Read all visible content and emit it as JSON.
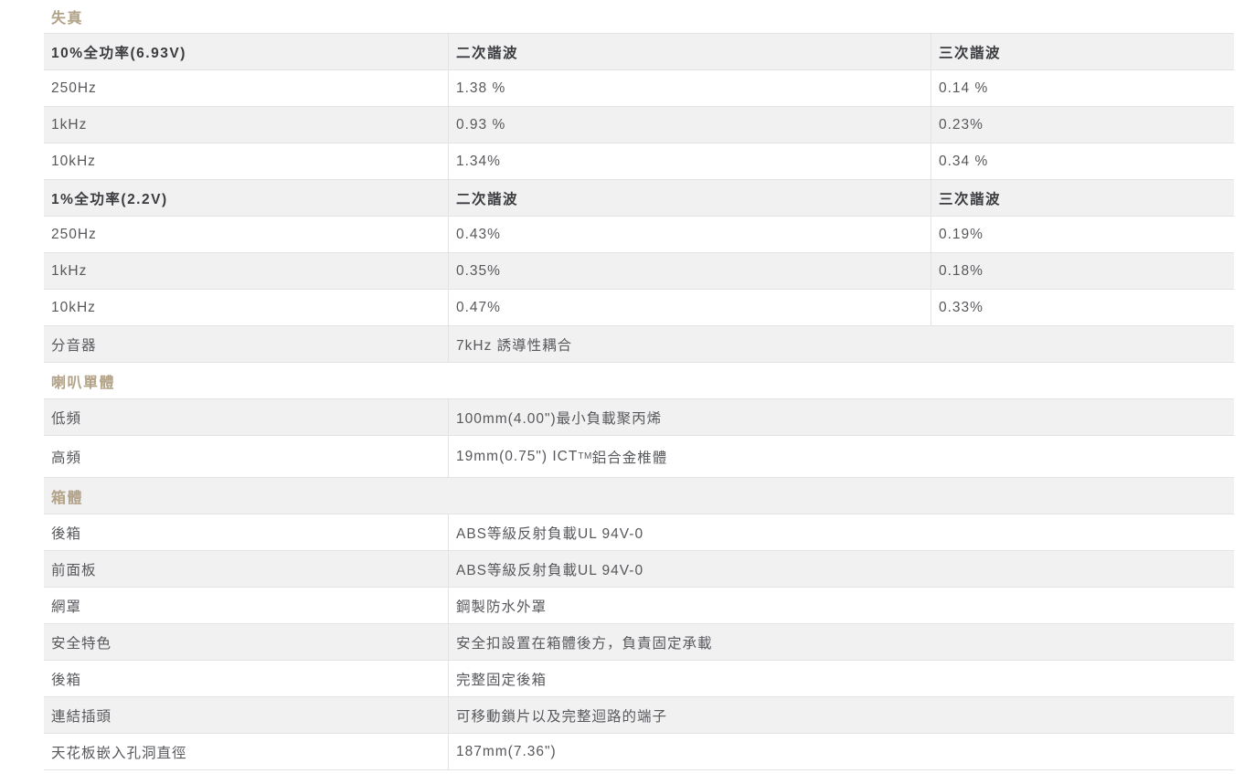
{
  "colors": {
    "section_heading": "#b1a288",
    "header_text": "#3b3c40",
    "cell_text": "#57585c",
    "row_stripe": "#f1f1f1",
    "border": "#e3e3e3"
  },
  "sections": {
    "distortion": {
      "title": "失真",
      "header1": {
        "label": "10%全功率(6.93V)",
        "h2": "二次諧波",
        "h3": "三次諧波"
      },
      "rows1": [
        {
          "label": "250Hz",
          "second": "1.38 %",
          "third": "0.14 %"
        },
        {
          "label": "1kHz",
          "second": "0.93 %",
          "third": "0.23%"
        },
        {
          "label": "10kHz",
          "second": "1.34%",
          "third": "0.34 %"
        }
      ],
      "header2": {
        "label": "1%全功率(2.2V)",
        "h2": "二次諧波",
        "h3": "三次諧波"
      },
      "rows2": [
        {
          "label": "250Hz",
          "second": "0.43%",
          "third": "0.19%"
        },
        {
          "label": "1kHz",
          "second": "0.35%",
          "third": "0.18%"
        },
        {
          "label": "10kHz",
          "second": "0.47%",
          "third": "0.33%"
        }
      ],
      "crossover": {
        "label": "分音器",
        "value": "7kHz 誘導性耦合"
      }
    },
    "drivers": {
      "title": "喇叭單體",
      "low": {
        "label": "低頻",
        "value": "100mm(4.00\")最小負載聚丙烯"
      },
      "high": {
        "label": "高頻",
        "value_prefix": "19mm(0.75\") ICT",
        "value_sup": "TM",
        "value_suffix": " 鋁合金椎體"
      }
    },
    "enclosure": {
      "title": "箱體",
      "rows": [
        {
          "label": "後箱",
          "value": "ABS等級反射負載UL 94V-0"
        },
        {
          "label": "前面板",
          "value": "ABS等級反射負載UL 94V-0"
        },
        {
          "label": "網罩",
          "value": "鋼製防水外罩"
        },
        {
          "label": "安全特色",
          "value": "安全扣設置在箱體後方，負責固定承載"
        },
        {
          "label": "後箱",
          "value": "完整固定後箱"
        },
        {
          "label": "連結插頭",
          "value": "可移動鎖片以及完整迴路的端子"
        },
        {
          "label": "天花板嵌入孔洞直徑",
          "value": "187mm(7.36\")"
        }
      ]
    }
  }
}
